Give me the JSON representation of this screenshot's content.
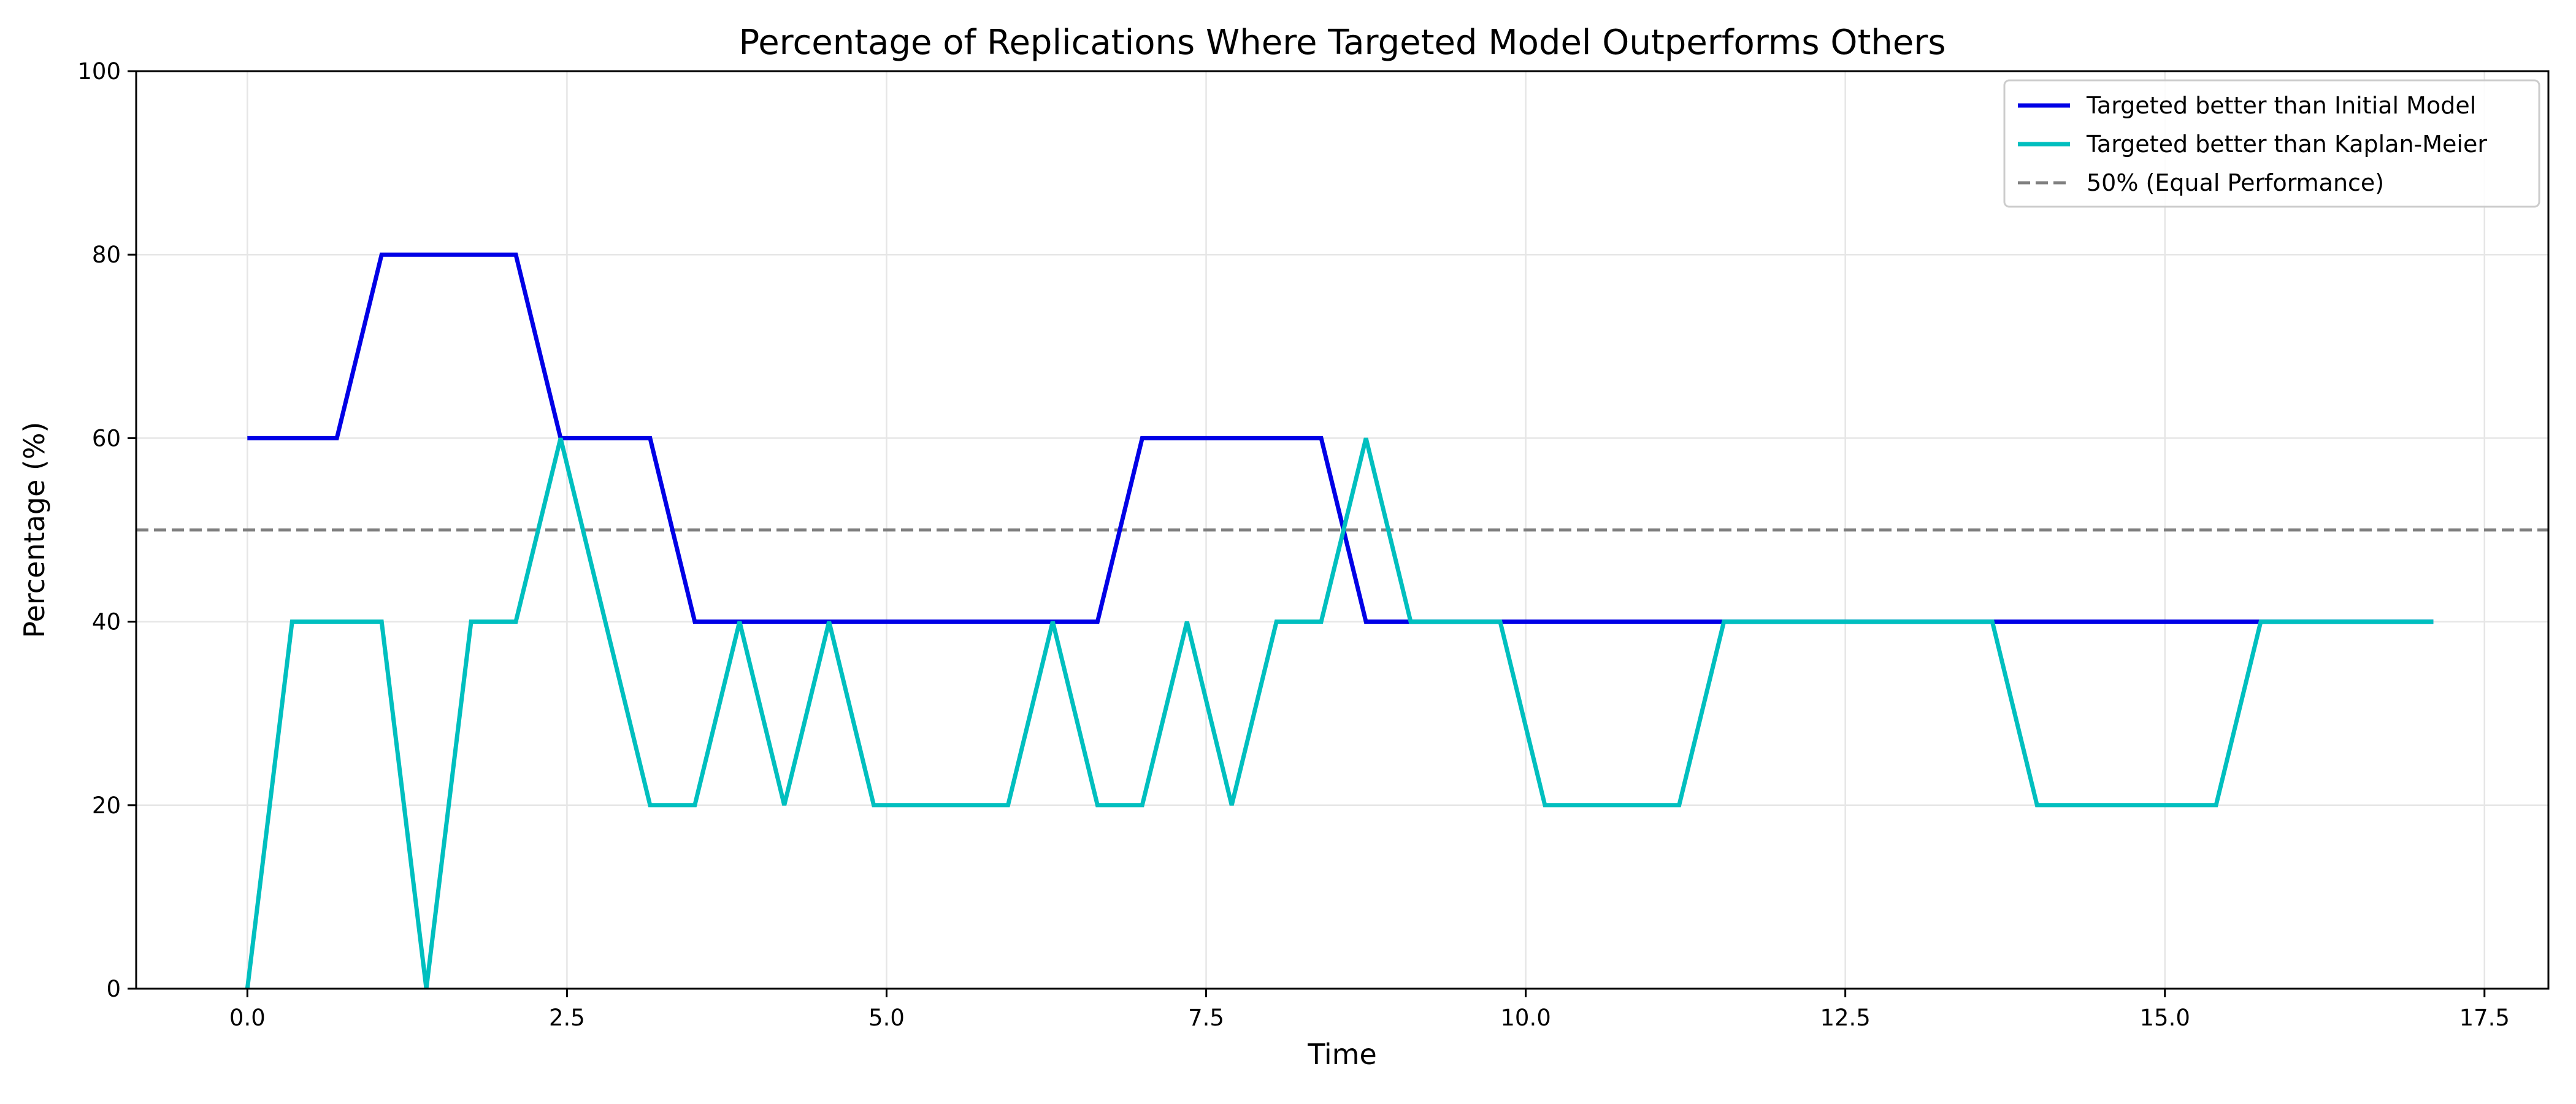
{
  "chart_data": {
    "type": "line",
    "title": "Percentage of Replications Where Targeted Model Outperforms Others",
    "xlabel": "Time",
    "ylabel": "Percentage (%)",
    "xlim": [
      -0.87,
      18.0
    ],
    "ylim": [
      0,
      100
    ],
    "xticks": [
      0.0,
      2.5,
      5.0,
      7.5,
      10.0,
      12.5,
      15.0,
      17.5
    ],
    "xtick_labels": [
      "0.0",
      "2.5",
      "5.0",
      "7.5",
      "10.0",
      "12.5",
      "15.0",
      "17.5"
    ],
    "yticks": [
      0,
      20,
      40,
      60,
      80,
      100
    ],
    "ytick_labels": [
      "0",
      "20",
      "40",
      "60",
      "80",
      "100"
    ],
    "grid": true,
    "legend_position": "top-right",
    "series": [
      {
        "name": "Targeted better than Initial Model",
        "color": "#0000e6",
        "style": "solid",
        "x": [
          0.0,
          0.35,
          0.7,
          1.05,
          1.4,
          1.75,
          2.1,
          2.45,
          2.8,
          3.15,
          3.5,
          3.85,
          4.2,
          4.55,
          4.9,
          5.25,
          5.6,
          5.95,
          6.3,
          6.65,
          7.0,
          7.35,
          7.7,
          8.05,
          8.4,
          8.75,
          9.1,
          9.45,
          9.8,
          10.15,
          10.5,
          10.85,
          11.2,
          11.55,
          11.9,
          12.25,
          12.6,
          12.95,
          13.3,
          13.65,
          14.0,
          14.35,
          14.7,
          15.05,
          15.4,
          15.75,
          16.1,
          16.45,
          16.8,
          17.1
        ],
        "values": [
          60,
          60,
          60,
          80,
          80,
          80,
          80,
          60,
          60,
          60,
          40,
          40,
          40,
          40,
          40,
          40,
          40,
          40,
          40,
          40,
          60,
          60,
          60,
          60,
          60,
          40,
          40,
          40,
          40,
          40,
          40,
          40,
          40,
          40,
          40,
          40,
          40,
          40,
          40,
          40,
          40,
          40,
          40,
          40,
          40,
          40,
          40,
          40,
          40,
          40
        ]
      },
      {
        "name": "Targeted better than Kaplan-Meier",
        "color": "#00bfbf",
        "style": "solid",
        "x": [
          0.0,
          0.35,
          0.7,
          1.05,
          1.4,
          1.75,
          2.1,
          2.45,
          2.8,
          3.15,
          3.5,
          3.85,
          4.2,
          4.55,
          4.9,
          5.25,
          5.6,
          5.95,
          6.3,
          6.65,
          7.0,
          7.35,
          7.7,
          8.05,
          8.4,
          8.75,
          9.1,
          9.45,
          9.8,
          10.15,
          10.5,
          10.85,
          11.2,
          11.55,
          11.9,
          12.25,
          12.6,
          12.95,
          13.3,
          13.65,
          14.0,
          14.35,
          14.7,
          15.05,
          15.4,
          15.75,
          16.1,
          16.45,
          16.8,
          17.1
        ],
        "values": [
          0,
          40,
          40,
          40,
          0,
          40,
          40,
          60,
          40,
          20,
          20,
          40,
          20,
          40,
          20,
          20,
          20,
          20,
          40,
          20,
          20,
          40,
          20,
          40,
          40,
          60,
          40,
          40,
          40,
          20,
          20,
          20,
          20,
          40,
          40,
          40,
          40,
          40,
          40,
          40,
          20,
          20,
          20,
          20,
          20,
          40,
          40,
          40,
          40,
          40
        ]
      }
    ],
    "reference_line": {
      "name": "50% (Equal Performance)",
      "y": 50,
      "color": "#808080",
      "style": "dashed"
    }
  }
}
